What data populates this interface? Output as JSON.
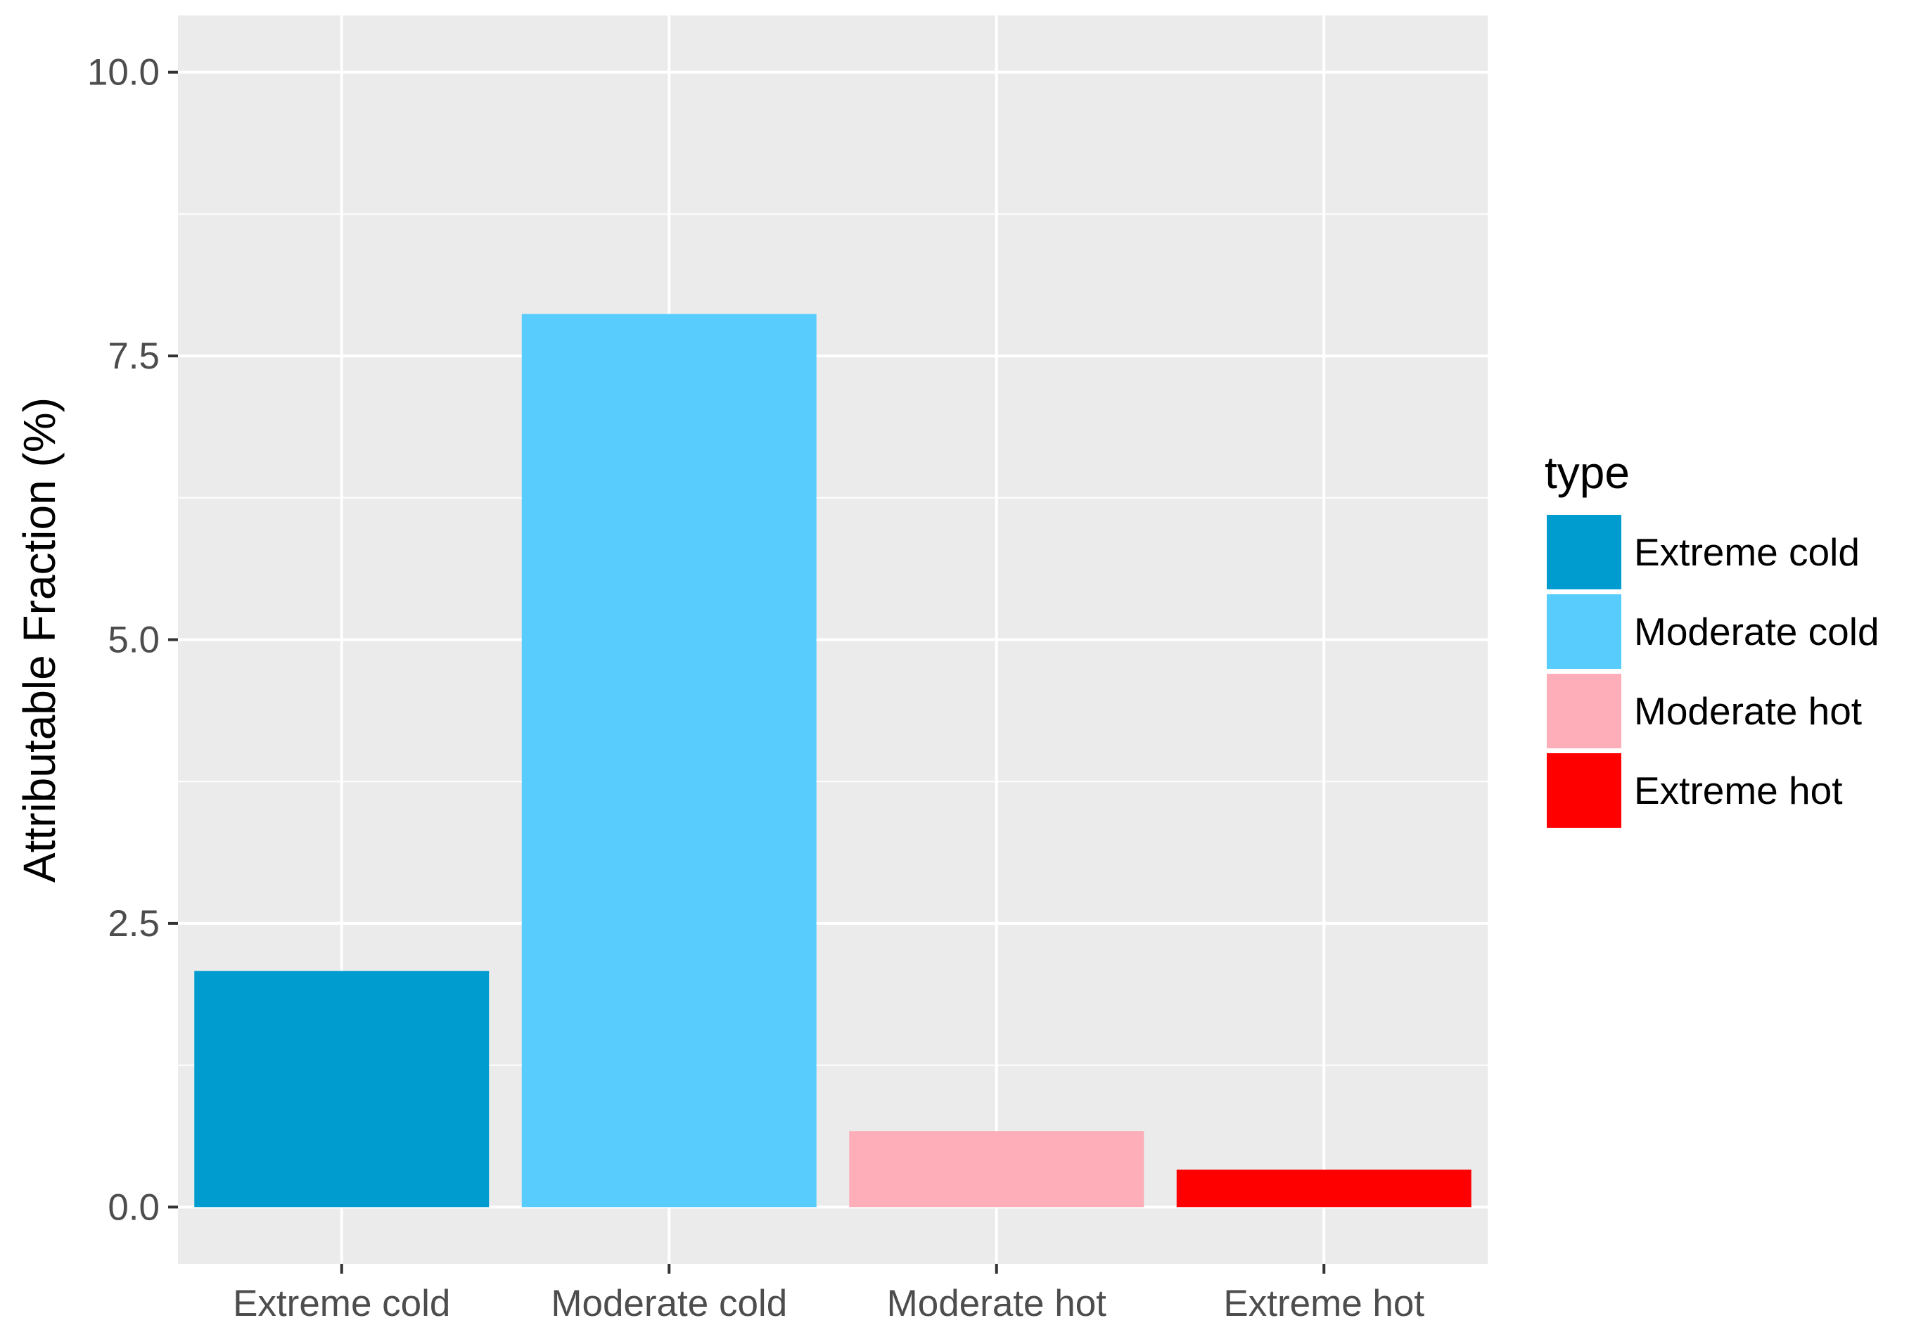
{
  "chart_data": {
    "type": "bar",
    "categories": [
      "Extreme cold",
      "Moderate cold",
      "Moderate hot",
      "Extreme hot"
    ],
    "values": [
      2.08,
      7.87,
      0.67,
      0.33
    ],
    "colors": [
      "#009ccf",
      "#58cdfd",
      "#feaeb9",
      "#fe0000"
    ],
    "xlabel": "",
    "ylabel": "Attributable Fraction (%)",
    "ylim": [
      -0.5,
      10.5
    ],
    "yticks": [
      0,
      2.5,
      5,
      7.5,
      10
    ],
    "ytick_labels": [
      "0.0",
      "2.5",
      "5.0",
      "7.5",
      "10.0"
    ],
    "grid": true,
    "panel_background": "#ebebeb",
    "legend": {
      "title": "type",
      "position": "right",
      "entries": [
        "Extreme cold",
        "Moderate cold",
        "Moderate hot",
        "Extreme hot"
      ]
    }
  }
}
